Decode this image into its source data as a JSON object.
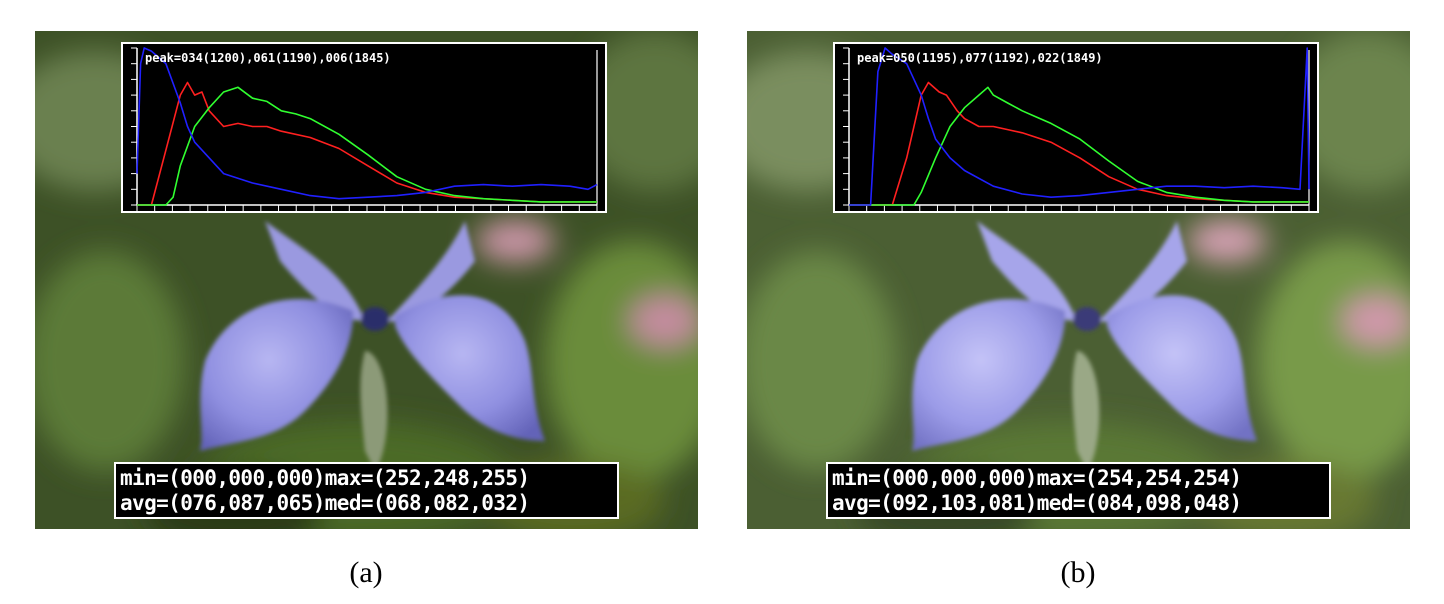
{
  "colors": {
    "red": "#ff2020",
    "green": "#30ff30",
    "blue": "#2020ff",
    "axis": "#ffffff"
  },
  "chart_data": [
    {
      "type": "line",
      "caption": "(a)",
      "peak_label": "peak=034(1200),061(1190),006(1845)",
      "stats": {
        "line1": "min=(000,000,000)max=(252,248,255)",
        "line2": "avg=(076,087,065)med=(068,082,032)"
      },
      "xlim": [
        0,
        255
      ],
      "ylim": [
        0,
        1
      ],
      "series": [
        {
          "color": "red",
          "x": [
            0,
            8,
            16,
            24,
            28,
            32,
            36,
            40,
            48,
            56,
            64,
            72,
            80,
            96,
            112,
            128,
            144,
            160,
            176,
            192,
            208,
            224,
            240,
            255
          ],
          "y": [
            0,
            0,
            0.35,
            0.7,
            0.78,
            0.7,
            0.72,
            0.6,
            0.5,
            0.52,
            0.5,
            0.5,
            0.47,
            0.43,
            0.36,
            0.25,
            0.14,
            0.08,
            0.05,
            0.04,
            0.03,
            0.02,
            0.02,
            0.02
          ]
        },
        {
          "color": "green",
          "x": [
            0,
            16,
            20,
            24,
            32,
            40,
            48,
            56,
            64,
            72,
            80,
            88,
            96,
            112,
            128,
            144,
            160,
            176,
            192,
            208,
            224,
            240,
            255
          ],
          "y": [
            0,
            0,
            0.05,
            0.25,
            0.5,
            0.62,
            0.72,
            0.75,
            0.68,
            0.66,
            0.6,
            0.58,
            0.55,
            0.45,
            0.32,
            0.18,
            0.1,
            0.06,
            0.04,
            0.03,
            0.02,
            0.02,
            0.02
          ]
        },
        {
          "color": "blue",
          "x": [
            0,
            2,
            4,
            8,
            16,
            24,
            28,
            32,
            40,
            48,
            64,
            80,
            96,
            112,
            128,
            144,
            160,
            176,
            192,
            208,
            224,
            240,
            250,
            255
          ],
          "y": [
            0.2,
            0.9,
            1.0,
            0.98,
            0.9,
            0.65,
            0.5,
            0.4,
            0.3,
            0.2,
            0.14,
            0.1,
            0.06,
            0.04,
            0.05,
            0.06,
            0.08,
            0.12,
            0.13,
            0.12,
            0.13,
            0.12,
            0.1,
            0.13
          ]
        }
      ]
    },
    {
      "type": "line",
      "caption": "(b)",
      "peak_label": "peak=050(1195),077(1192),022(1849)",
      "stats": {
        "line1": "min=(000,000,000)max=(254,254,254)",
        "line2": "avg=(092,103,081)med=(084,098,048)"
      },
      "xlim": [
        0,
        255
      ],
      "ylim": [
        0,
        1
      ],
      "series": [
        {
          "color": "red",
          "x": [
            0,
            24,
            32,
            40,
            44,
            50,
            54,
            60,
            64,
            72,
            80,
            88,
            96,
            112,
            128,
            144,
            160,
            176,
            192,
            208,
            224,
            240,
            255
          ],
          "y": [
            0,
            0,
            0.3,
            0.7,
            0.78,
            0.72,
            0.7,
            0.6,
            0.55,
            0.5,
            0.5,
            0.48,
            0.46,
            0.4,
            0.3,
            0.18,
            0.1,
            0.06,
            0.04,
            0.03,
            0.02,
            0.02,
            0.02
          ]
        },
        {
          "color": "green",
          "x": [
            0,
            36,
            40,
            48,
            56,
            64,
            72,
            77,
            80,
            88,
            96,
            104,
            112,
            128,
            144,
            160,
            176,
            192,
            208,
            224,
            240,
            255
          ],
          "y": [
            0,
            0,
            0.08,
            0.3,
            0.5,
            0.62,
            0.7,
            0.75,
            0.7,
            0.65,
            0.6,
            0.56,
            0.52,
            0.42,
            0.28,
            0.15,
            0.08,
            0.05,
            0.03,
            0.02,
            0.02,
            0.02
          ]
        },
        {
          "color": "blue",
          "x": [
            0,
            12,
            16,
            20,
            24,
            32,
            40,
            44,
            48,
            56,
            64,
            80,
            96,
            112,
            128,
            144,
            160,
            176,
            192,
            208,
            224,
            240,
            250,
            254,
            255
          ],
          "y": [
            0,
            0,
            0.85,
            1.0,
            0.96,
            0.9,
            0.7,
            0.55,
            0.42,
            0.3,
            0.22,
            0.12,
            0.07,
            0.05,
            0.06,
            0.08,
            0.1,
            0.12,
            0.12,
            0.11,
            0.12,
            0.11,
            0.1,
            1.0,
            0.1
          ]
        }
      ]
    }
  ]
}
